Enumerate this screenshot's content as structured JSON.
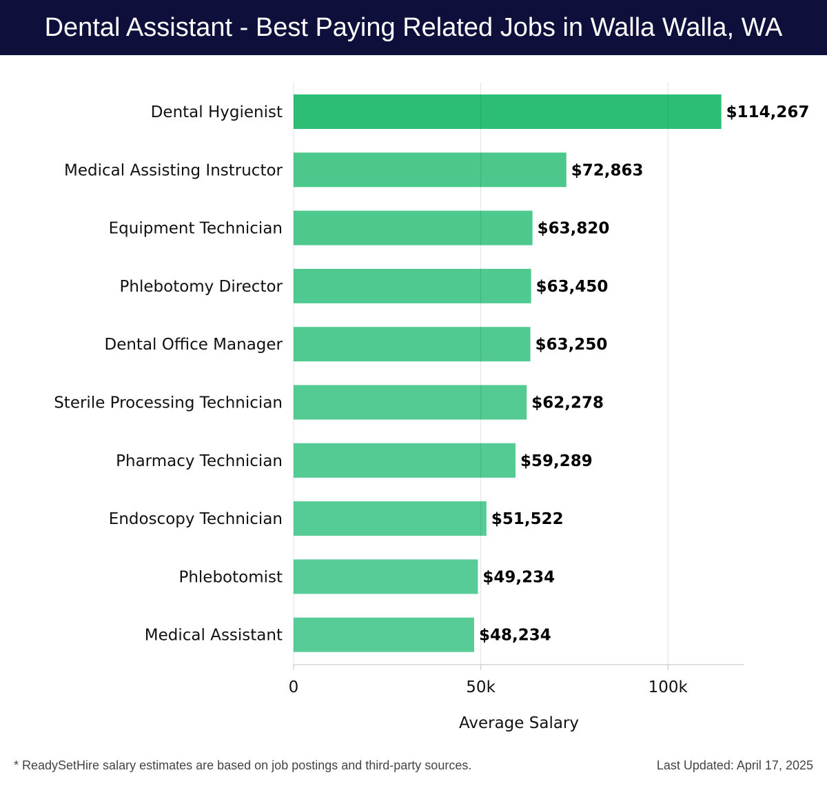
{
  "header": {
    "title": "Dental Assistant - Best Paying Related Jobs in Walla Walla, WA"
  },
  "chart_data": {
    "type": "bar",
    "orientation": "horizontal",
    "categories": [
      "Dental Hygienist",
      "Medical Assisting Instructor",
      "Equipment Technician",
      "Phlebotomy Director",
      "Dental Office Manager",
      "Sterile Processing Technician",
      "Pharmacy Technician",
      "Endoscopy Technician",
      "Phlebotomist",
      "Medical Assistant"
    ],
    "values": [
      114267,
      72863,
      63820,
      63450,
      63250,
      62278,
      59289,
      51522,
      49234,
      48234
    ],
    "value_labels": [
      "$114,267",
      "$72,863",
      "$63,820",
      "$63,450",
      "$63,250",
      "$62,278",
      "$59,289",
      "$51,522",
      "$49,234",
      "$48,234"
    ],
    "xlabel": "Average Salary",
    "ylabel": "",
    "xlim": [
      0,
      120400
    ],
    "xticks": [
      0,
      50000,
      100000
    ],
    "xtick_labels": [
      "0",
      "50k",
      "100k"
    ],
    "grid": true,
    "colors": {
      "top": "#2dbe76",
      "rest_start": "#4cc88d",
      "rest_end": "#58cc97"
    }
  },
  "footer": {
    "note": "* ReadySetHire salary estimates are based on job postings and third-party sources.",
    "updated": "Last Updated: April 17, 2025"
  }
}
